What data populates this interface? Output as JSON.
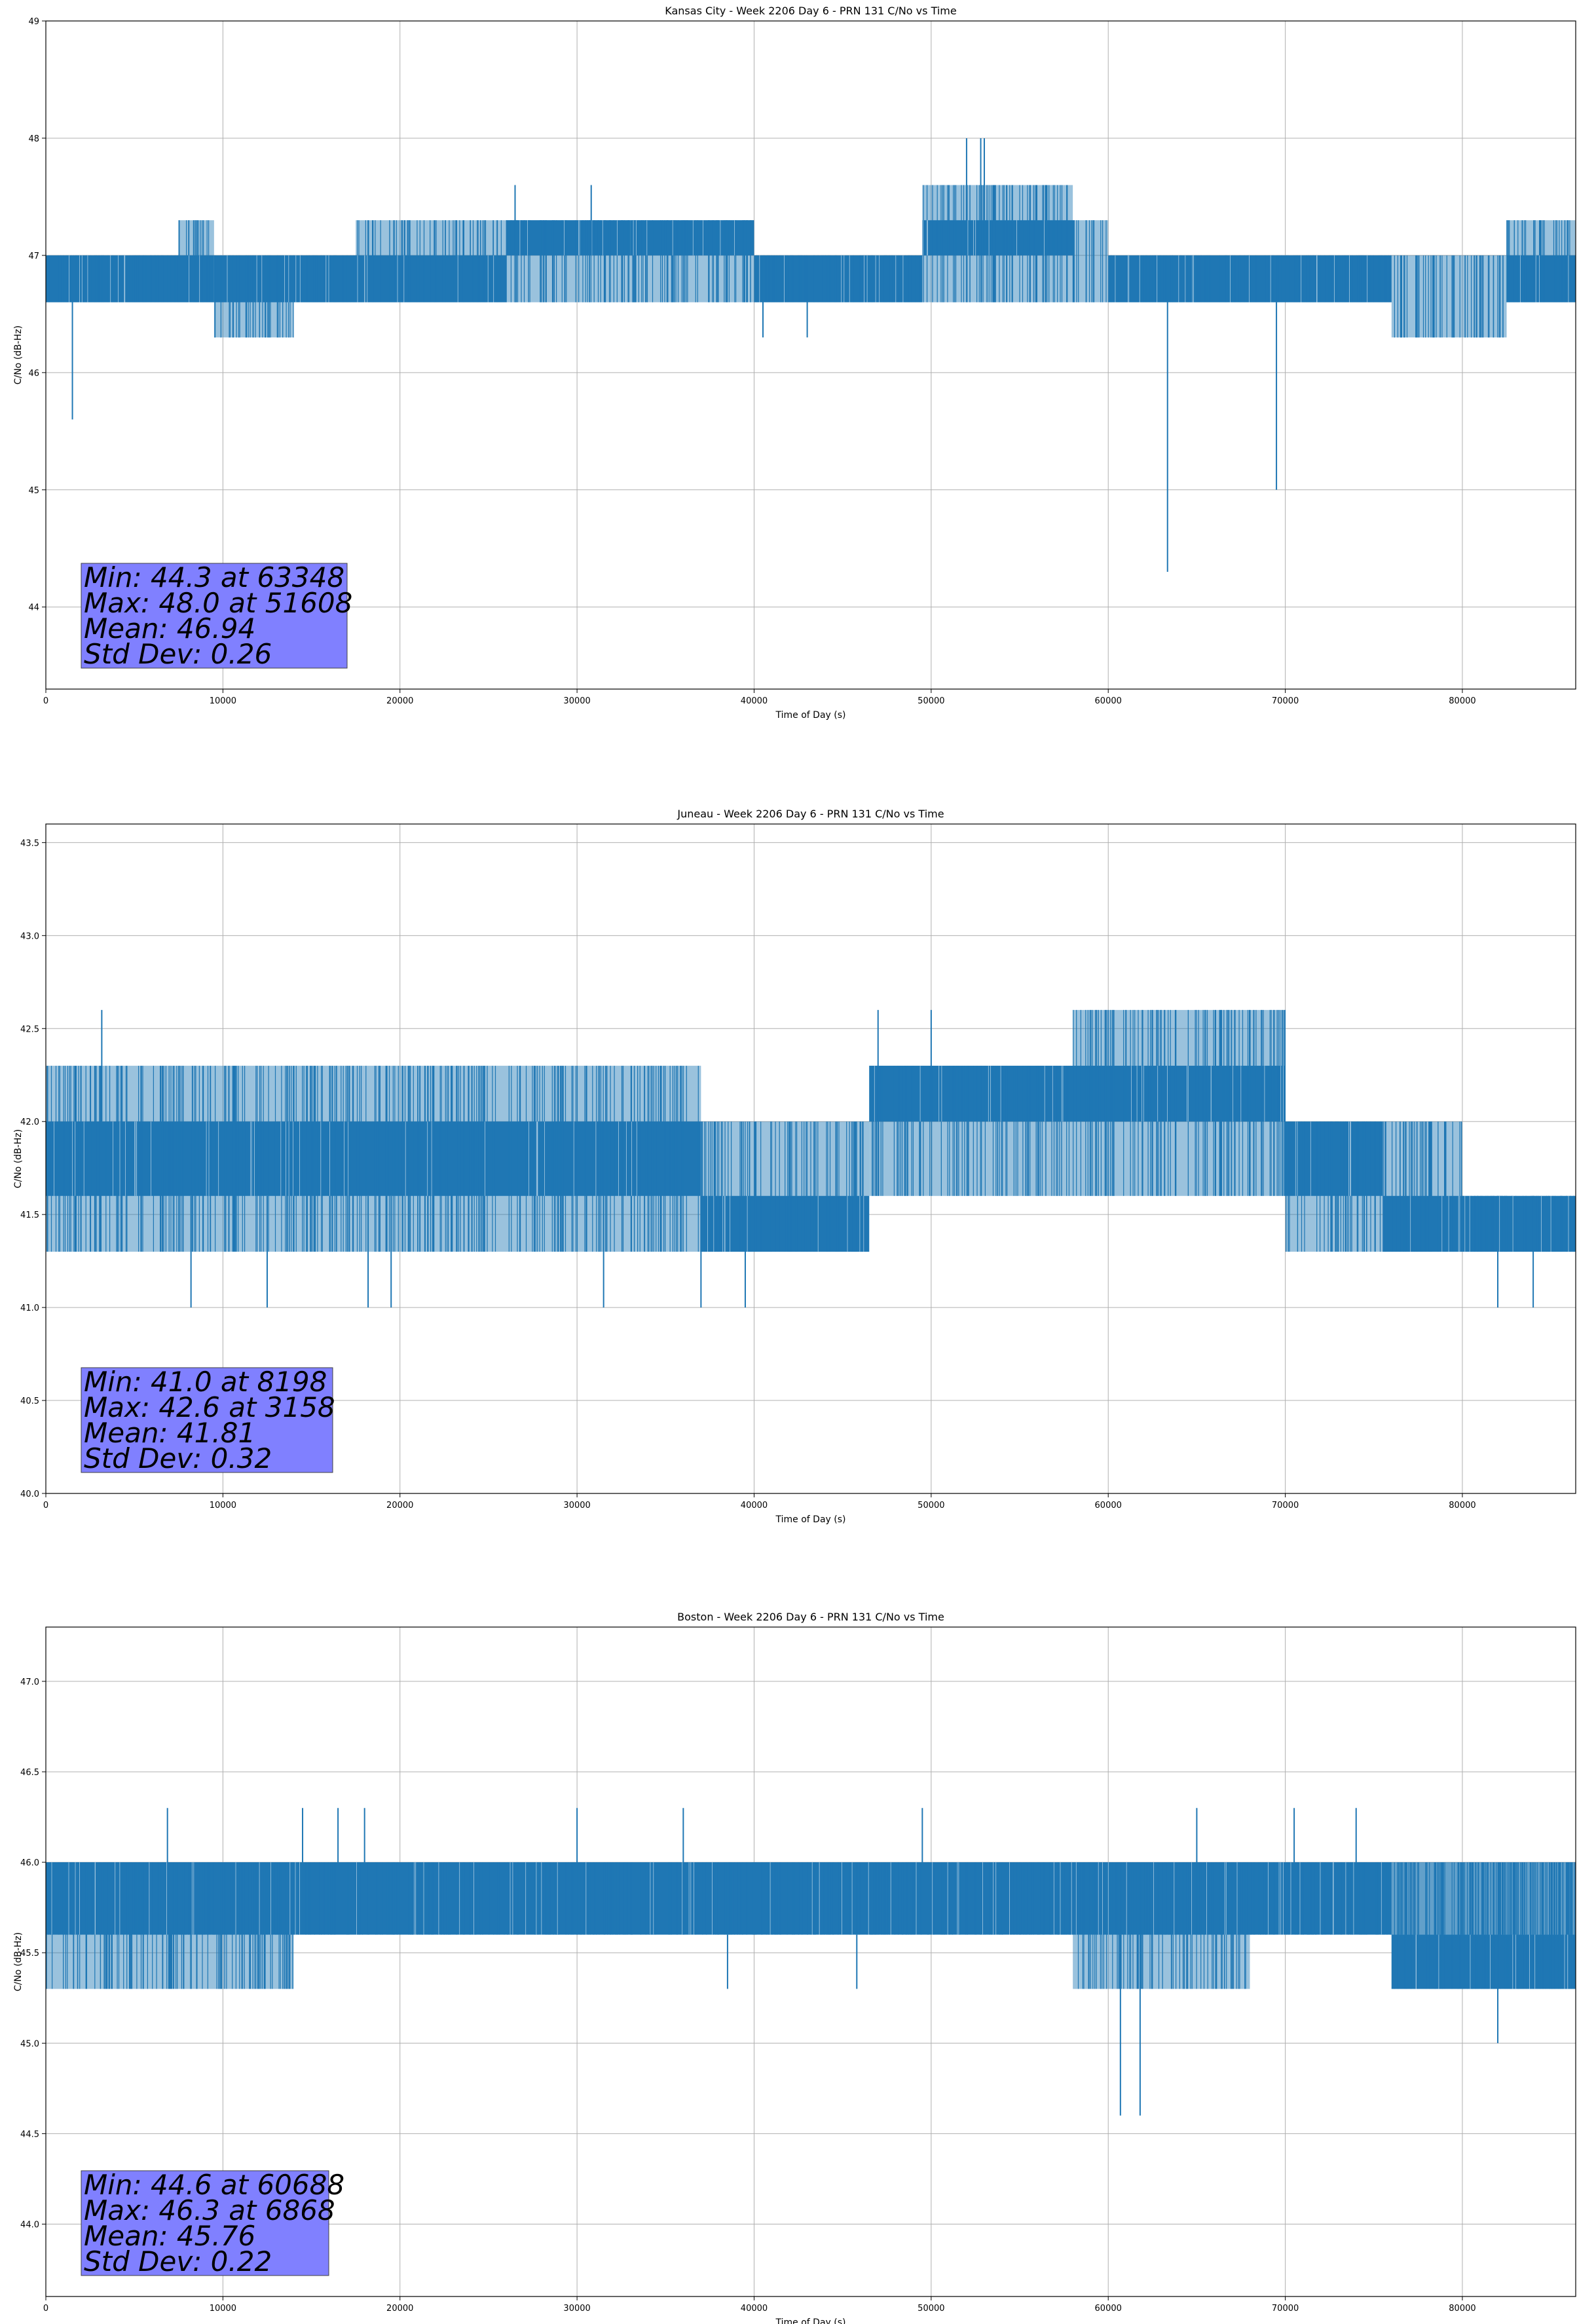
{
  "chart_data": [
    {
      "type": "line",
      "title": "Kansas City - Week 2206 Day 6 - PRN 131 C/No vs Time",
      "xlabel": "Time of Day (s)",
      "ylabel": "C/No (dB-Hz)",
      "xlim": [
        0,
        86400
      ],
      "ylim": [
        43.3,
        49.0
      ],
      "xticks": [
        0,
        10000,
        20000,
        30000,
        40000,
        50000,
        60000,
        70000,
        80000
      ],
      "yticks": [
        44,
        45,
        46,
        47,
        48,
        49
      ],
      "ytick_labels": [
        "44",
        "45",
        "46",
        "47",
        "48",
        "49"
      ],
      "grid": true,
      "line_color": "#1f77b4",
      "stats": [
        "Min: 44.3 at 63348",
        "Max: 48.0 at 51608",
        "Mean: 46.94",
        "Std Dev: 0.26"
      ],
      "stats_box_color": "#8080ff",
      "band_segments": [
        [
          0,
          7500,
          46.6,
          47.0
        ],
        [
          7500,
          9500,
          46.6,
          47.3
        ],
        [
          9500,
          14000,
          46.3,
          47.0
        ],
        [
          14000,
          17500,
          46.6,
          47.0
        ],
        [
          17500,
          40000,
          46.6,
          47.3
        ],
        [
          40000,
          49500,
          46.6,
          47.0
        ],
        [
          49500,
          58000,
          46.6,
          47.6
        ],
        [
          58000,
          60000,
          46.6,
          47.3
        ],
        [
          60000,
          76000,
          46.6,
          47.0
        ],
        [
          76000,
          82500,
          46.3,
          47.0
        ],
        [
          82500,
          86400,
          46.6,
          47.3
        ]
      ],
      "core_segments": [
        [
          0,
          7500,
          46.6,
          47.0
        ],
        [
          7500,
          9500,
          46.6,
          47.0
        ],
        [
          9500,
          14000,
          46.6,
          47.0
        ],
        [
          14000,
          17500,
          46.6,
          47.0
        ],
        [
          17500,
          26000,
          46.6,
          47.0
        ],
        [
          26000,
          33000,
          47.0,
          47.3
        ],
        [
          33000,
          40000,
          47.0,
          47.3
        ],
        [
          40000,
          49500,
          46.6,
          47.0
        ],
        [
          49500,
          52000,
          47.0,
          47.3
        ],
        [
          52000,
          58000,
          47.0,
          47.3
        ],
        [
          60000,
          76000,
          46.6,
          47.0
        ],
        [
          82500,
          86400,
          46.6,
          47.0
        ]
      ],
      "spikes": [
        [
          1500,
          45.6
        ],
        [
          52000,
          48.0
        ],
        [
          52800,
          48.0
        ],
        [
          53000,
          48.0
        ],
        [
          26500,
          47.6
        ],
        [
          30800,
          47.6
        ],
        [
          63348,
          44.3
        ],
        [
          69500,
          45.0
        ],
        [
          40500,
          46.3
        ],
        [
          43000,
          46.3
        ],
        [
          51000,
          47.6
        ],
        [
          56500,
          47.6
        ]
      ]
    },
    {
      "type": "line",
      "title": "Juneau - Week 2206 Day 6 - PRN 131 C/No vs Time",
      "xlabel": "Time of Day (s)",
      "ylabel": "C/No (dB-Hz)",
      "xlim": [
        0,
        86400
      ],
      "ylim": [
        40.0,
        43.6
      ],
      "xticks": [
        0,
        10000,
        20000,
        30000,
        40000,
        50000,
        60000,
        70000,
        80000
      ],
      "yticks": [
        40.0,
        40.5,
        41.0,
        41.5,
        42.0,
        42.5,
        43.0,
        43.5
      ],
      "ytick_labels": [
        "40.0",
        "40.5",
        "41.0",
        "41.5",
        "42.0",
        "42.5",
        "43.0",
        "43.5"
      ],
      "grid": true,
      "line_color": "#1f77b4",
      "stats": [
        "Min: 41.0 at 8198",
        "Max: 42.6 at 3158",
        "Mean: 41.81",
        "Std Dev: 0.32"
      ],
      "stats_box_color": "#8080ff",
      "band_segments": [
        [
          0,
          37000,
          41.3,
          42.3
        ],
        [
          37000,
          46500,
          41.3,
          42.0
        ],
        [
          46500,
          58000,
          41.6,
          42.3
        ],
        [
          58000,
          70000,
          41.6,
          42.6
        ],
        [
          70000,
          80000,
          41.3,
          42.0
        ],
        [
          80000,
          86400,
          41.3,
          41.6
        ]
      ],
      "core_segments": [
        [
          0,
          37000,
          41.6,
          42.0
        ],
        [
          37000,
          46500,
          41.3,
          41.6
        ],
        [
          46500,
          70000,
          42.0,
          42.3
        ],
        [
          70000,
          75500,
          41.6,
          42.0
        ],
        [
          75500,
          80000,
          41.3,
          41.6
        ],
        [
          80000,
          86400,
          41.3,
          41.6
        ]
      ],
      "spikes": [
        [
          3158,
          42.6
        ],
        [
          8198,
          41.0
        ],
        [
          12500,
          41.0
        ],
        [
          18200,
          41.0
        ],
        [
          19500,
          41.0
        ],
        [
          31500,
          41.0
        ],
        [
          37000,
          41.0
        ],
        [
          39500,
          41.0
        ],
        [
          47000,
          42.6
        ],
        [
          50000,
          42.6
        ],
        [
          61000,
          42.6
        ],
        [
          82000,
          41.0
        ],
        [
          84000,
          41.0
        ]
      ]
    },
    {
      "type": "line",
      "title": "Boston - Week 2206 Day 6 - PRN 131 C/No vs Time",
      "xlabel": "Time of Day (s)",
      "ylabel": "C/No (dB-Hz)",
      "xlim": [
        0,
        86400
      ],
      "ylim": [
        43.6,
        47.3
      ],
      "xticks": [
        0,
        10000,
        20000,
        30000,
        40000,
        50000,
        60000,
        70000,
        80000
      ],
      "yticks": [
        44.0,
        44.5,
        45.0,
        45.5,
        46.0,
        46.5,
        47.0
      ],
      "ytick_labels": [
        "44.0",
        "44.5",
        "45.0",
        "45.5",
        "46.0",
        "46.5",
        "47.0"
      ],
      "grid": true,
      "line_color": "#1f77b4",
      "stats": [
        "Min: 44.6 at 60688",
        "Max: 46.3 at 6868",
        "Mean: 45.76",
        "Std Dev: 0.22"
      ],
      "stats_box_color": "#8080ff",
      "band_segments": [
        [
          0,
          86400,
          45.6,
          46.0
        ],
        [
          0,
          14000,
          45.3,
          46.0
        ],
        [
          58000,
          68000,
          45.3,
          46.0
        ],
        [
          76000,
          86400,
          45.3,
          46.0
        ]
      ],
      "core_segments": [
        [
          0,
          76000,
          45.6,
          46.0
        ],
        [
          76000,
          86400,
          45.3,
          45.6
        ]
      ],
      "spikes": [
        [
          6868,
          46.3
        ],
        [
          14500,
          46.3
        ],
        [
          16500,
          46.3
        ],
        [
          18000,
          46.3
        ],
        [
          30000,
          46.3
        ],
        [
          36000,
          46.3
        ],
        [
          49500,
          46.3
        ],
        [
          65000,
          46.3
        ],
        [
          70500,
          46.3
        ],
        [
          74000,
          46.3
        ],
        [
          60688,
          44.6
        ],
        [
          61800,
          44.6
        ],
        [
          82000,
          45.0
        ],
        [
          38500,
          45.3
        ],
        [
          45800,
          45.3
        ]
      ]
    }
  ]
}
